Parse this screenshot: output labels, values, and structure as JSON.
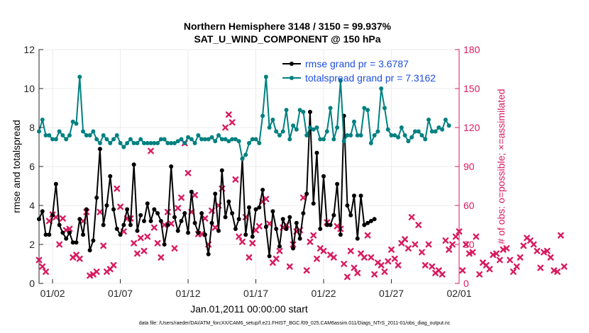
{
  "chart_data": {
    "type": "line",
    "title_line1": "Northern Hemisphere 3148 / 3150 = 99.937%",
    "title_line2": "SAT_U_WIND_COMPONENT @ 150 hPa",
    "xlabel": "Jan.01,2011 00:00:00 start",
    "ylabel_left": "rmse and totalspread",
    "ylabel_right": "# of obs: o=possible; ×=assimilated",
    "footnote": "data file: /Users/raeder/DAI/ATM_forcXX/CAM6_setup/f.e21.FHIST_BGC.f09_025.CAM6assim.011/Diags_NTrS_2011-01/obs_diag_output.nc",
    "x_ticks": [
      {
        "day": 1.5,
        "label": "01/02"
      },
      {
        "day": 6.5,
        "label": "01/07"
      },
      {
        "day": 11.5,
        "label": "01/12"
      },
      {
        "day": 16.5,
        "label": "01/17"
      },
      {
        "day": 21.5,
        "label": "01/22"
      },
      {
        "day": 26.5,
        "label": "01/27"
      },
      {
        "day": 31.5,
        "label": "02/01"
      }
    ],
    "xlim": [
      0.5,
      31.5
    ],
    "ylim_left": [
      0,
      12
    ],
    "ylim_right": [
      0,
      180
    ],
    "y_left_ticks": [
      "0",
      "2",
      "4",
      "6",
      "8",
      "10",
      "12"
    ],
    "y_right_ticks": [
      "0",
      "30",
      "60",
      "90",
      "120",
      "150",
      "180"
    ],
    "colors": {
      "rmse": "#000000",
      "totalspread": "#008080",
      "obs": "#d81b60",
      "right_axis": "#d81b60",
      "legend_text": "#1f4fe0"
    },
    "legend": [
      {
        "key": "rmse",
        "label": "rmse grand pr = 3.6787"
      },
      {
        "key": "totalspread",
        "label": "totalspread grand pr = 7.3162"
      }
    ],
    "series": [
      {
        "name": "rmse",
        "x_start": 0.5,
        "x_step": 0.25,
        "values": [
          3.3,
          3.7,
          2.5,
          2.5,
          3.5,
          5.1,
          3.0,
          2.6,
          2.3,
          2.6,
          2.1,
          2.1,
          3.3,
          2.5,
          3.8,
          1.7,
          2.2,
          4.4,
          6.9,
          3.0,
          4.0,
          5.5,
          3.8,
          2.8,
          2.5,
          3.0,
          3.8,
          3.0,
          6.1,
          2.7,
          3.5,
          3.2,
          4.1,
          3.2,
          3.8,
          3.6,
          3.2,
          2.0,
          3.0,
          6.0,
          3.4,
          2.7,
          3.2,
          3.6,
          2.6,
          4.7,
          3.1,
          2.6,
          3.6,
          2.5,
          1.5,
          3.1,
          4.6,
          2.7,
          5.8,
          3.4,
          4.2,
          3.6,
          2.8,
          3.3,
          6.4,
          2.5,
          3.9,
          2.4,
          3.8,
          3.9,
          4.8,
          2.9,
          1.4,
          3.7,
          2.8,
          1.9,
          3.3,
          2.8,
          3.4,
          1.8,
          3.1,
          2.3,
          3.6,
          4.6,
          8.8,
          4.1,
          6.7,
          2.8,
          5.5,
          3.0,
          3.0,
          3.5,
          5.1,
          2.5,
          8.6,
          4.0,
          3.5,
          4.5,
          2.3,
          4.5,
          3.0,
          3.1,
          3.2,
          3.3
        ],
        "breaks": [
          31
        ]
      },
      {
        "name": "totalspread",
        "x_start": 0.5,
        "x_step": 0.25,
        "values": [
          7.8,
          8.4,
          7.6,
          7.6,
          7.4,
          7.4,
          7.8,
          7.6,
          7.4,
          7.6,
          8.3,
          8.2,
          10.6,
          7.8,
          7.6,
          7.6,
          7.8,
          7.4,
          7.2,
          7.6,
          7.4,
          7.2,
          7.4,
          7.6,
          7.2,
          7.0,
          7.2,
          7.4,
          7.2,
          7.2,
          7.4,
          7.2,
          7.2,
          7.2,
          7.2,
          7.2,
          7.4,
          7.4,
          7.2,
          7.2,
          7.2,
          7.3,
          7.4,
          7.2,
          7.5,
          7.4,
          7.2,
          7.6,
          7.4,
          7.4,
          7.4,
          7.5,
          7.3,
          7.6,
          7.4,
          7.4,
          7.3,
          7.4,
          7.4,
          7.3,
          6.4,
          6.6,
          7.2,
          7.4,
          7.4,
          7.2,
          8.6,
          10.6,
          8.0,
          8.4,
          7.8,
          7.6,
          7.8,
          8.9,
          7.4,
          8.1,
          7.9,
          8.9,
          8.8,
          7.6,
          8.0,
          7.9,
          8.0,
          7.4,
          7.4,
          7.8,
          9.0,
          7.4,
          8.0,
          10.4,
          7.3,
          7.6,
          7.6,
          8.3,
          7.6,
          7.6,
          9.0,
          8.9,
          7.2,
          7.6,
          7.8,
          10.0,
          9.0,
          7.9,
          7.6,
          7.6,
          7.5,
          8.0,
          7.6,
          7.3,
          7.5,
          7.8,
          7.8,
          7.6,
          7.4,
          8.4,
          7.8,
          7.8,
          8.0,
          7.9,
          8.4,
          8.1
        ],
        "breaks": [
          59
        ]
      }
    ],
    "obs_assimilated": {
      "x_start": 0.5,
      "x_step": 0.25,
      "values": [
        18,
        13,
        9,
        48,
        53,
        51,
        30,
        50,
        41,
        42,
        20,
        22,
        19,
        48,
        55,
        6,
        7,
        9,
        55,
        29,
        9,
        11,
        14,
        73,
        59,
        40,
        50,
        50,
        31,
        23,
        35,
        25,
        36,
        102,
        43,
        31,
        20,
        45,
        55,
        46,
        27,
        58,
        66,
        108,
        85,
        55,
        68,
        38,
        38,
        50,
        30,
        56,
        43,
        60,
        73,
        120,
        130,
        124,
        80,
        36,
        32,
        51,
        20,
        31,
        41,
        44,
        63,
        65,
        46,
        16,
        19,
        25,
        43,
        45,
        13,
        30,
        40,
        41,
        66,
        10,
        32,
        37,
        19,
        27,
        25,
        47,
        22,
        20,
        44,
        42,
        15,
        5,
        25,
        12,
        8,
        23,
        20,
        37,
        20,
        7,
        16,
        14,
        9,
        17,
        26,
        19,
        14,
        31,
        34,
        27,
        51,
        30,
        45,
        24,
        14,
        30,
        13,
        8,
        10,
        7,
        33,
        26,
        30,
        36,
        40,
        10,
        30,
        23,
        24,
        36,
        7,
        16,
        14,
        11,
        22,
        23,
        18,
        26,
        27,
        18,
        9,
        13,
        20,
        29,
        35,
        33,
        30,
        25,
        12,
        24,
        25,
        20,
        10,
        9,
        37,
        13
      ]
    }
  }
}
